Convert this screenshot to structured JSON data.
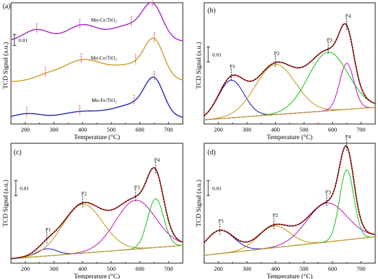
{
  "chart_data": [
    {
      "panel_label": "(a)",
      "type": "line",
      "xlabel": "Temperature (°C)",
      "ylabel": "TCD Signal (a.u.)",
      "xlim": [
        150,
        750
      ],
      "xticks": [
        200,
        300,
        400,
        500,
        600,
        700
      ],
      "scale_bar_label": "0.01",
      "series": [
        {
          "name": "Mn-Ce/TiO₂",
          "color": "#a020c8",
          "baseline": 2.05,
          "peaks": [
            [
              240,
              0.3,
              45
            ],
            [
              400,
              0.42,
              55
            ],
            [
              560,
              0.4,
              60
            ],
            [
              645,
              0.85,
              35
            ]
          ],
          "peak_markers": [
            240,
            390,
            570,
            645
          ]
        },
        {
          "name": "Mn-Co/TiO₂",
          "color": "#c89a1e",
          "baseline": 1.0,
          "peaks": [
            [
              270,
              0.12,
              45
            ],
            [
              400,
              0.55,
              70
            ],
            [
              580,
              0.42,
              75
            ],
            [
              650,
              0.85,
              33
            ]
          ],
          "peak_markers": [
            270,
            395,
            585,
            650
          ]
        },
        {
          "name": "Mn-Fe/TiO₂",
          "color": "#1f1fb4",
          "baseline": 0.05,
          "peaks": [
            [
              210,
              0.12,
              45
            ],
            [
              400,
              0.17,
              70
            ],
            [
              580,
              0.35,
              70
            ],
            [
              650,
              0.85,
              33
            ]
          ],
          "peak_markers": [
            205,
            390,
            580,
            650
          ]
        }
      ]
    },
    {
      "panel_label": "(b)",
      "type": "line",
      "xlabel": "Temperature (°C)",
      "ylabel": "TCD Signal (a.u.)",
      "xlim": [
        150,
        750
      ],
      "xticks": [
        200,
        300,
        400,
        500,
        600,
        700
      ],
      "scale_bar_label": "0.01",
      "baseline": {
        "x": [
          150,
          750
        ],
        "y": [
          0.0,
          0.15
        ]
      },
      "peaks": [
        {
          "label": "P1",
          "center": 245,
          "height": 0.45,
          "width": 45
        },
        {
          "label": "P2",
          "center": 400,
          "height": 0.6,
          "width": 70
        },
        {
          "label": "P3",
          "center": 585,
          "height": 0.7,
          "width": 70
        },
        {
          "label": "P4",
          "center": 650,
          "height": 0.55,
          "width": 25
        }
      ],
      "colors": {
        "P1": "#1f1fb4",
        "P2": "#c89a1e",
        "P3": "#22c422",
        "P4": "#c020c0",
        "baseline": "#c89a1e",
        "envelope": "#d21e1e",
        "measured": "#000000"
      }
    },
    {
      "panel_label": "(c)",
      "type": "line",
      "xlabel": "Temperature (°C)",
      "ylabel": "TCD Signal (a.u.)",
      "xlim": [
        150,
        750
      ],
      "xticks": [
        200,
        300,
        400,
        500,
        600,
        700
      ],
      "scale_bar_label": "0.01",
      "baseline": {
        "x": [
          150,
          750
        ],
        "y": [
          0.0,
          0.15
        ]
      },
      "peaks": [
        {
          "label": "P1",
          "center": 275,
          "height": 0.08,
          "width": 35
        },
        {
          "label": "P2",
          "center": 400,
          "height": 0.55,
          "width": 70
        },
        {
          "label": "P3",
          "center": 585,
          "height": 0.55,
          "width": 70
        },
        {
          "label": "P4",
          "center": 655,
          "height": 0.55,
          "width": 28
        }
      ],
      "colors": {
        "P1": "#1f1fb4",
        "P2": "#c89a1e",
        "P3": "#c020c0",
        "P4": "#22c422",
        "baseline": "#c89a1e",
        "envelope": "#d21e1e",
        "measured": "#000000"
      }
    },
    {
      "panel_label": "(d)",
      "type": "line",
      "xlabel": "Temperature (°C)",
      "ylabel": "TCD Signal (a.u.)",
      "xlim": [
        150,
        750
      ],
      "xticks": [
        200,
        300,
        400,
        500,
        600,
        700
      ],
      "scale_bar_label": "0.01",
      "baseline": {
        "x": [
          150,
          750
        ],
        "y": [
          0.0,
          0.12
        ]
      },
      "peaks": [
        {
          "label": "P1",
          "center": 205,
          "height": 0.15,
          "width": 50
        },
        {
          "label": "P2",
          "center": 395,
          "height": 0.14,
          "width": 55
        },
        {
          "label": "P3",
          "center": 580,
          "height": 0.25,
          "width": 70
        },
        {
          "label": "P4",
          "center": 650,
          "height": 0.45,
          "width": 25
        }
      ],
      "colors": {
        "P1": "#1f1fb4",
        "P2": "#c89a1e",
        "P3": "#c020c0",
        "P4": "#22c422",
        "baseline": "#c89a1e",
        "envelope": "#d21e1e",
        "measured": "#000000"
      }
    }
  ]
}
